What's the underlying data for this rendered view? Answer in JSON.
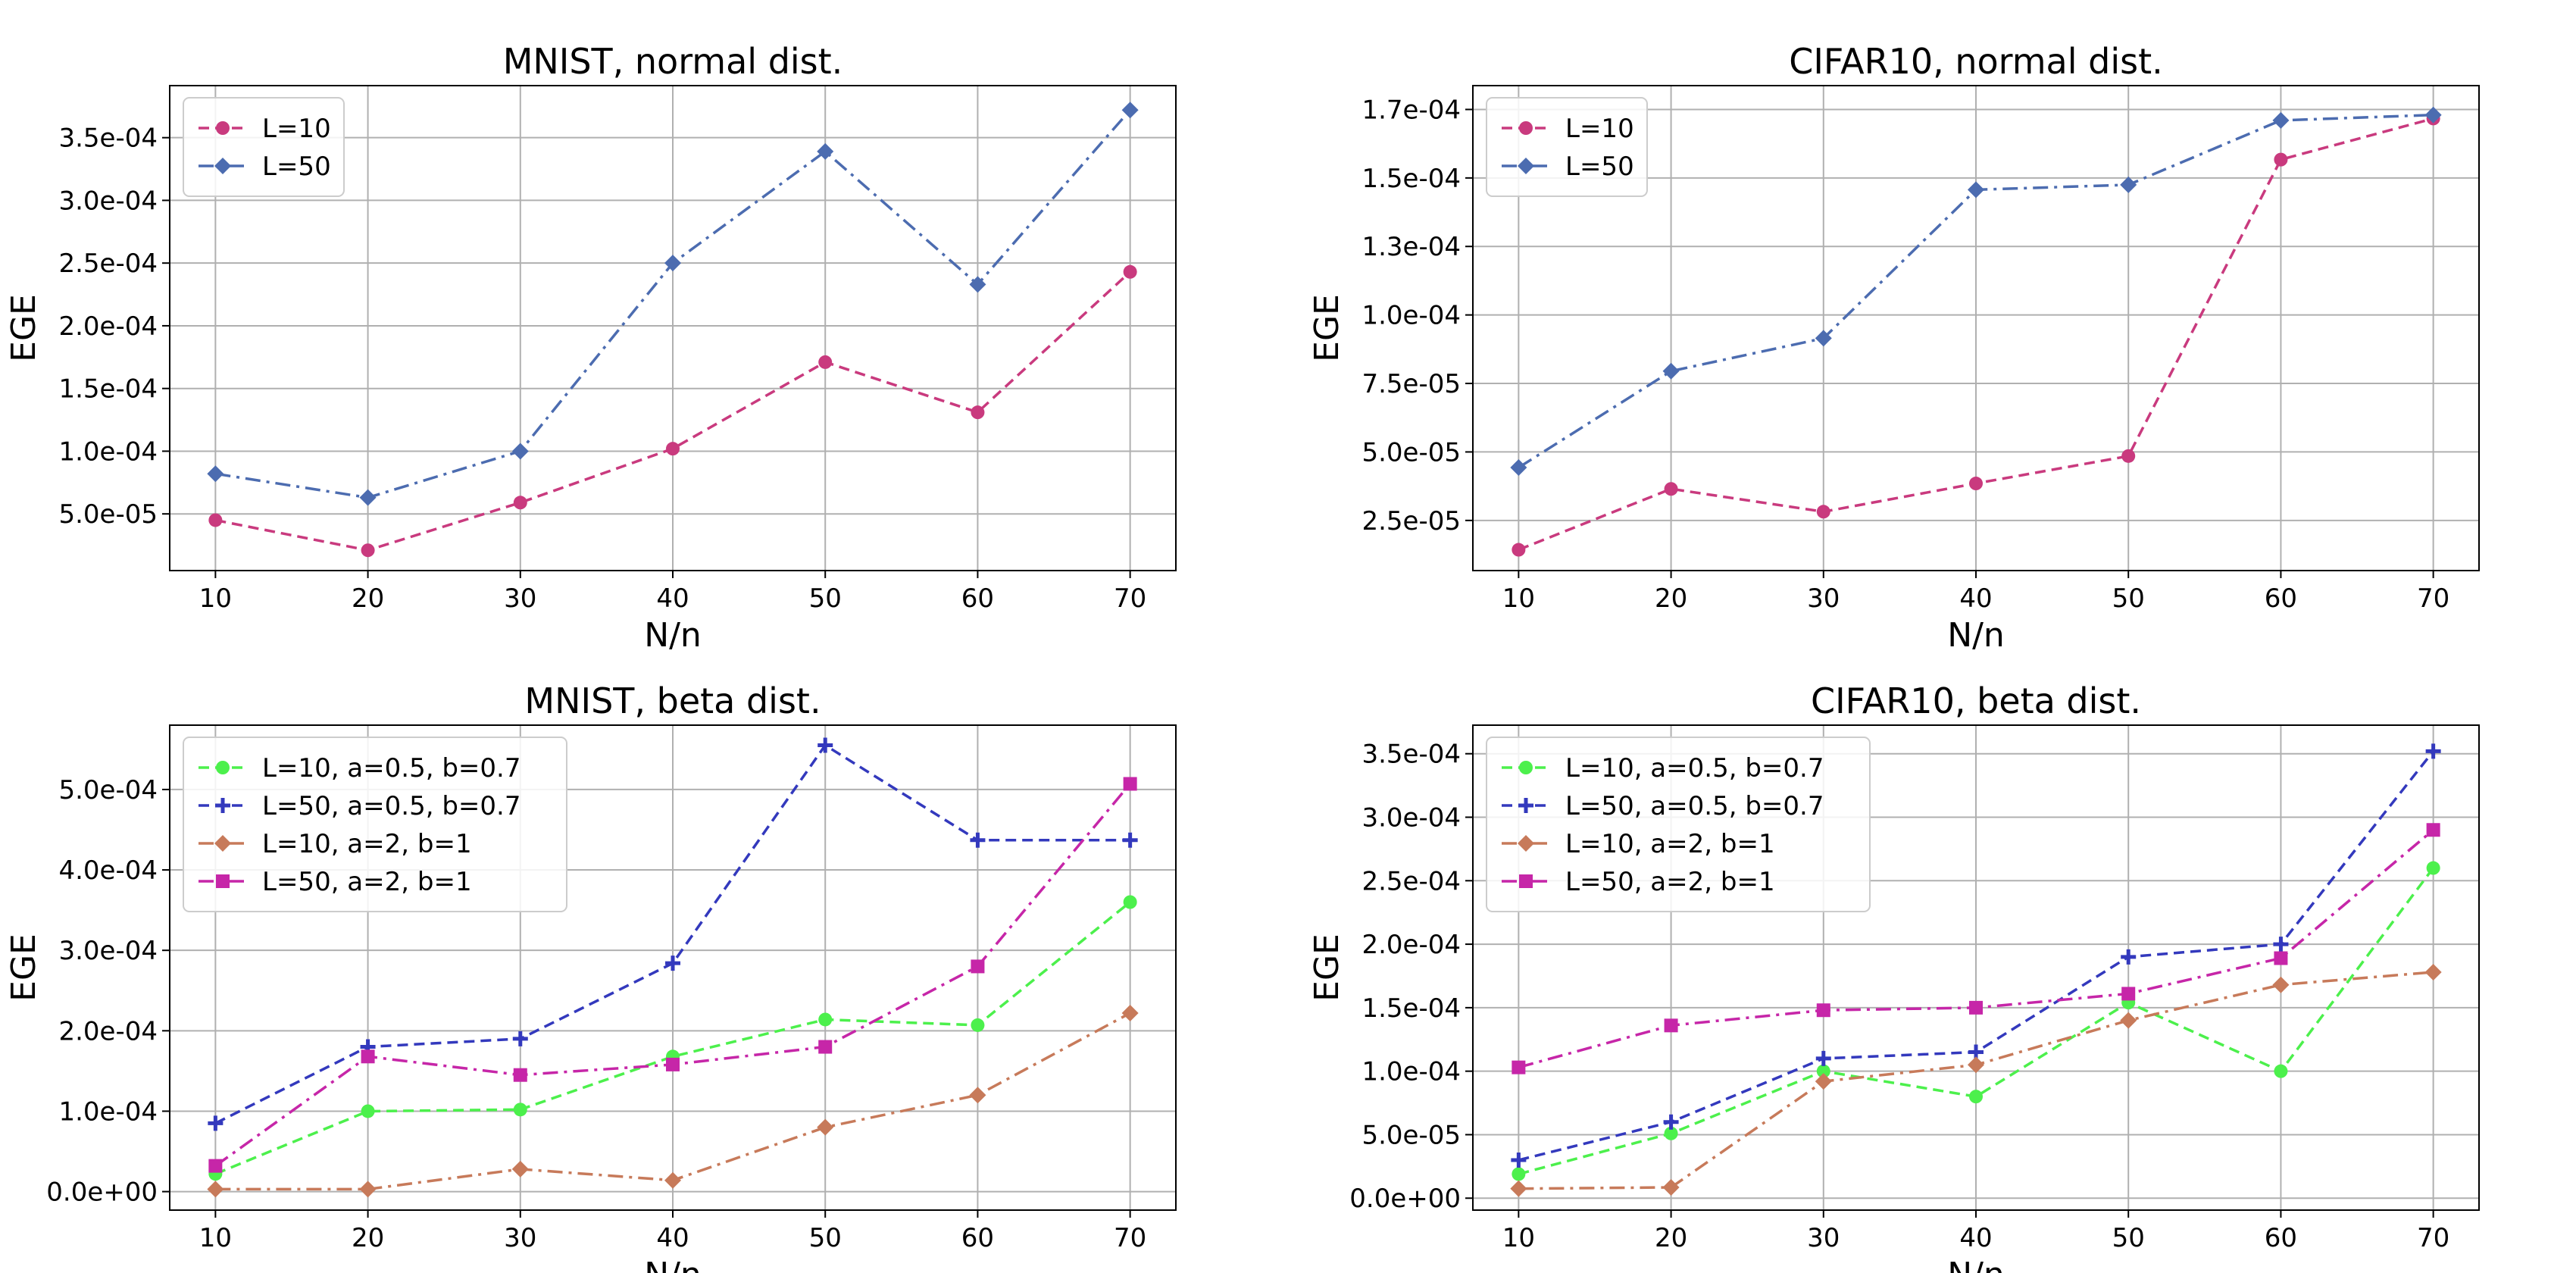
{
  "chart_data": [
    {
      "type": "line",
      "title": "MNIST, normal dist.",
      "xlabel": "N/n",
      "ylabel": "EGE",
      "x": [
        10,
        20,
        30,
        40,
        50,
        60,
        70
      ],
      "xlim": [
        7,
        73
      ],
      "ylim": [
        4.8e-06,
        0.0003915
      ],
      "yticks": [
        5e-05,
        0.0001,
        0.00015,
        0.0002,
        0.00025,
        0.0003,
        0.00035
      ],
      "ytick_labels": [
        "5.0e-05",
        "1.0e-04",
        "1.5e-04",
        "2.0e-04",
        "2.5e-04",
        "3.0e-04",
        "3.5e-04"
      ],
      "legend_position": "top-left",
      "series": [
        {
          "name": "L=10",
          "values": [
            4.5e-05,
            2.1e-05,
            5.9e-05,
            0.000102,
            0.000171,
            0.000131,
            0.000243
          ],
          "color": "#c93a7e",
          "dash": "dashed",
          "marker": "circle"
        },
        {
          "name": "L=50",
          "values": [
            8.2e-05,
            6.3e-05,
            0.0001,
            0.00025,
            0.000339,
            0.000233,
            0.000372
          ],
          "color": "#4c6cb0",
          "dash": "dashdot",
          "marker": "diamond"
        }
      ]
    },
    {
      "type": "line",
      "title": "CIFAR10, normal dist.",
      "xlabel": "N/n",
      "ylabel": "EGE",
      "x": [
        10,
        20,
        30,
        40,
        50,
        60,
        70
      ],
      "xlim": [
        7,
        73
      ],
      "ylim": [
        6.7e-06,
        0.0001837
      ],
      "yticks": [
        2.5e-05,
        5e-05,
        7.5e-05,
        0.0001,
        0.000125,
        0.00015,
        0.000175
      ],
      "ytick_labels": [
        "2.5e-05",
        "5.0e-05",
        "7.5e-05",
        "1.0e-04",
        "1.3e-04",
        "1.5e-04",
        "1.7e-04"
      ],
      "legend_position": "top-left",
      "series": [
        {
          "name": "L=10",
          "values": [
            1.43e-05,
            3.65e-05,
            2.82e-05,
            3.85e-05,
            4.85e-05,
            0.0001567,
            0.0001717
          ],
          "color": "#c93a7e",
          "dash": "dashed",
          "marker": "circle"
        },
        {
          "name": "L=50",
          "values": [
            4.43e-05,
            7.95e-05,
            9.15e-05,
            0.0001457,
            0.0001475,
            0.000171,
            0.000173
          ],
          "color": "#4c6cb0",
          "dash": "dashdot",
          "marker": "diamond"
        }
      ]
    },
    {
      "type": "line",
      "title": "MNIST, beta dist.",
      "xlabel": "N/n",
      "ylabel": "EGE",
      "x": [
        10,
        20,
        30,
        40,
        50,
        60,
        70
      ],
      "xlim": [
        7,
        73
      ],
      "ylim": [
        -2.3e-05,
        0.00058
      ],
      "yticks": [
        0,
        0.0001,
        0.0002,
        0.0003,
        0.0004,
        0.0005
      ],
      "ytick_labels": [
        "0.0e+00",
        "1.0e-04",
        "2.0e-04",
        "3.0e-04",
        "4.0e-04",
        "5.0e-04"
      ],
      "legend_position": "top-left",
      "series": [
        {
          "name": "L=10, a=0.5, b=0.7",
          "values": [
            2.2e-05,
            0.0001,
            0.000102,
            0.000168,
            0.000214,
            0.000207,
            0.00036
          ],
          "color": "#4cf04c",
          "dash": "dashed",
          "marker": "circle"
        },
        {
          "name": "L=50, a=0.5, b=0.7",
          "values": [
            8.5e-05,
            0.00018,
            0.00019,
            0.000284,
            0.000555,
            0.000437,
            0.000437
          ],
          "color": "#3339bd",
          "dash": "dashed",
          "marker": "plus"
        },
        {
          "name": "L=10, a=2, b=1",
          "values": [
            3e-06,
            3e-06,
            2.8e-05,
            1.4e-05,
            8e-05,
            0.00012,
            0.000222
          ],
          "color": "#c77a5a",
          "dash": "dashdot",
          "marker": "diamond"
        },
        {
          "name": "L=50, a=2, b=1",
          "values": [
            3.2e-05,
            0.000168,
            0.000145,
            0.000158,
            0.00018,
            0.00028,
            0.000507
          ],
          "color": "#c626a8",
          "dash": "dashdot",
          "marker": "square"
        }
      ]
    },
    {
      "type": "line",
      "title": "CIFAR10, beta dist.",
      "xlabel": "N/n",
      "ylabel": "EGE",
      "x": [
        10,
        20,
        30,
        40,
        50,
        60,
        70
      ],
      "xlim": [
        7,
        73
      ],
      "ylim": [
        -9.4e-06,
        0.0003725
      ],
      "yticks": [
        0,
        5e-05,
        0.0001,
        0.00015,
        0.0002,
        0.00025,
        0.0003,
        0.00035
      ],
      "ytick_labels": [
        "0.0e+00",
        "5.0e-05",
        "1.0e-04",
        "1.5e-04",
        "2.0e-04",
        "2.5e-04",
        "3.0e-04",
        "3.5e-04"
      ],
      "legend_position": "top-left",
      "series": [
        {
          "name": "L=10, a=0.5, b=0.7",
          "values": [
            1.9e-05,
            5.1e-05,
            0.0001,
            8e-05,
            0.000154,
            0.0001,
            0.00026
          ],
          "color": "#4cf04c",
          "dash": "dashed",
          "marker": "circle"
        },
        {
          "name": "L=50, a=0.5, b=0.7",
          "values": [
            3e-05,
            6e-05,
            0.00011,
            0.000115,
            0.00019,
            0.0002,
            0.000352
          ],
          "color": "#3339bd",
          "dash": "dashed",
          "marker": "plus"
        },
        {
          "name": "L=10, a=2, b=1",
          "values": [
            7.5e-06,
            8.5e-06,
            9.2e-05,
            0.000105,
            0.00014,
            0.000168,
            0.000178
          ],
          "color": "#c77a5a",
          "dash": "dashdot",
          "marker": "diamond"
        },
        {
          "name": "L=50, a=2, b=1",
          "values": [
            0.000103,
            0.000136,
            0.000148,
            0.00015,
            0.000161,
            0.000189,
            0.00029
          ],
          "color": "#c626a8",
          "dash": "dashdot",
          "marker": "square"
        }
      ]
    }
  ]
}
